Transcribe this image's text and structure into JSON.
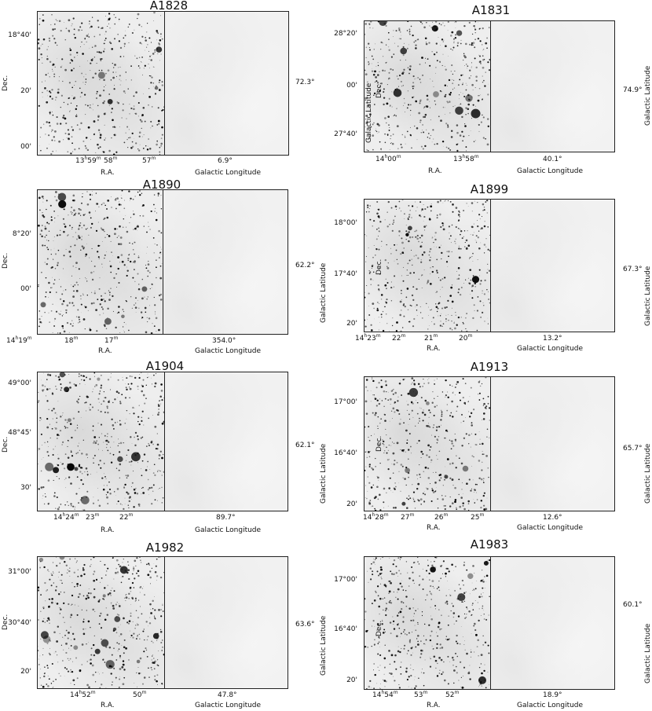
{
  "panels": [
    {
      "title": "A1828",
      "ra_ticks": [
        "13h59m",
        "58m",
        "57m"
      ],
      "dec_ticks": [
        "18°40'",
        "20'",
        "00'"
      ],
      "ra_label": "R.A.",
      "dec_label": "Dec.",
      "gal_lon_label": "Galactic Longitude",
      "gal_lat_label": "",
      "gal_lon_value": "6.9°",
      "gal_lat_value": "72.3°"
    },
    {
      "title": "A1831",
      "ra_ticks": [
        "14h00m",
        "13h58m"
      ],
      "dec_ticks": [
        "28°20'",
        "00'",
        "27°40'"
      ],
      "ra_label": "R.A.",
      "dec_label": "Dec.",
      "gal_lon_label": "Galactic Longitude",
      "gal_lat_label": "Galactic Latitude",
      "gal_lon_value": "40.1°",
      "gal_lat_value": "74.9°"
    },
    {
      "title": "A1890",
      "ra_ticks": [
        "14h19m",
        "18m",
        "17m"
      ],
      "dec_ticks": [
        "8°20'",
        "00'"
      ],
      "ra_label": "R.A.",
      "dec_label": "Dec.",
      "gal_lon_label": "Galactic Longitude",
      "gal_lat_label": "",
      "gal_lon_value": "354.0°",
      "gal_lat_value": "62.2°"
    },
    {
      "title": "A1899",
      "ra_ticks": [
        "14h23m",
        "22m",
        "21m",
        "20m"
      ],
      "dec_ticks": [
        "18°00'",
        "17°40'",
        "20'"
      ],
      "ra_label": "R.A.",
      "dec_label": "Dec.",
      "gal_lon_label": "Galactic Longitude",
      "gal_lat_label": "Galactic Latitude",
      "gal_lon_value": "13.2°",
      "gal_lat_value": "67.3°"
    },
    {
      "title": "A1904",
      "ra_ticks": [
        "14h24m",
        "23m",
        "22m"
      ],
      "dec_ticks": [
        "49°00'",
        "48°45'",
        "30'"
      ],
      "ra_label": "R.A.",
      "dec_label": "Dec.",
      "gal_lon_label": "Galactic Longitude",
      "gal_lat_label": "",
      "gal_lon_value": "89.7°",
      "gal_lat_value": "62.1°"
    },
    {
      "title": "A1913",
      "ra_ticks": [
        "14h28m",
        "27m",
        "26m",
        "25m"
      ],
      "dec_ticks": [
        "17°00'",
        "16°40'",
        "20'"
      ],
      "ra_label": "R.A.",
      "dec_label": "Dec.",
      "gal_lon_label": "Galactic Longitude",
      "gal_lat_label": "Galactic Latitude",
      "gal_lon_value": "12.6°",
      "gal_lat_value": "65.7°"
    },
    {
      "title": "A1982",
      "ra_ticks": [
        "14h52m",
        "50m"
      ],
      "dec_ticks": [
        "31°00'",
        "30°40'",
        "20'"
      ],
      "ra_label": "R.A.",
      "dec_label": "Dec.",
      "gal_lon_label": "Galactic Longitude",
      "gal_lat_label": "",
      "gal_lon_value": "47.8°",
      "gal_lat_value": "63.6°"
    },
    {
      "title": "A1983",
      "ra_ticks": [
        "14h54m",
        "53m",
        "52m"
      ],
      "dec_ticks": [
        "17°00'",
        "16°40'",
        "20'"
      ],
      "ra_label": "R.A.",
      "dec_label": "Dec.",
      "gal_lon_label": "Galactic Longitude",
      "gal_lat_label": "Galactic Latitude",
      "gal_lon_value": "18.9°",
      "gal_lat_value": "60.1°"
    }
  ]
}
